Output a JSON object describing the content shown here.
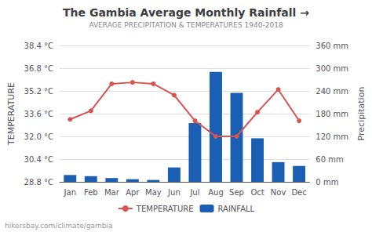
{
  "chart_data": {
    "type": "bar",
    "title": "The Gambia Average Monthly Rainfall →",
    "subtitle": "AVERAGE PRECIPITATION & TEMPERATURES 1940-2018",
    "categories": [
      "Jan",
      "Feb",
      "Mar",
      "Apr",
      "May",
      "Jun",
      "Jul",
      "Aug",
      "Sep",
      "Oct",
      "Nov",
      "Dec"
    ],
    "series": [
      {
        "name": "TEMPERATURE",
        "type": "line",
        "color": "#d9534f",
        "marker": "o",
        "values": [
          33.2,
          33.8,
          35.7,
          35.8,
          35.7,
          34.9,
          33.1,
          32.0,
          32.0,
          33.7,
          35.3,
          33.1
        ]
      },
      {
        "name": "RAINFALL",
        "type": "bar",
        "color": "#1a5fb4",
        "axis": "y2",
        "values": [
          18,
          15,
          10,
          7,
          5,
          38,
          155,
          290,
          235,
          115,
          52,
          42
        ]
      }
    ],
    "ylabel": "TEMPERATURE",
    "y2label": "Precipitation",
    "ylim": [
      28.8,
      38.4
    ],
    "yticks": [
      {
        "value": 28.8,
        "label": "28.8 °C"
      },
      {
        "value": 30.4,
        "label": "30.4 °C"
      },
      {
        "value": 32.0,
        "label": "32.0 °C"
      },
      {
        "value": 33.6,
        "label": "33.6 °C"
      },
      {
        "value": 35.2,
        "label": "35.2 °C"
      },
      {
        "value": 36.8,
        "label": "36.8 °C"
      },
      {
        "value": 38.4,
        "label": "38.4 °C"
      }
    ],
    "y2lim": [
      0,
      360
    ],
    "y2ticks": [
      {
        "value": 0,
        "label": "0 mm"
      },
      {
        "value": 60,
        "label": "60 mm"
      },
      {
        "value": 120,
        "label": "120 mm"
      },
      {
        "value": 180,
        "label": "180 mm"
      },
      {
        "value": 240,
        "label": "240 mm"
      },
      {
        "value": 300,
        "label": "300 mm"
      },
      {
        "value": 360,
        "label": "360 mm"
      }
    ],
    "grid": true,
    "legend": "bottom",
    "annotations": [
      "hikersbay.com/climate/gambia"
    ]
  }
}
